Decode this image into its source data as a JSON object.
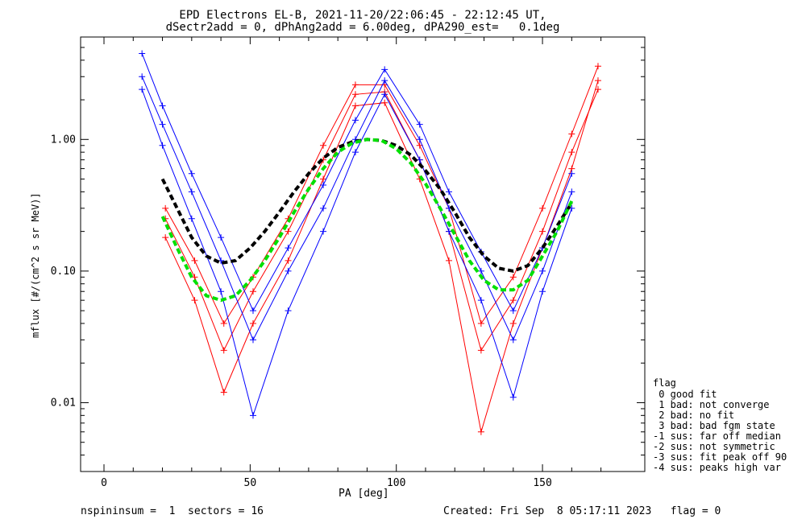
{
  "title_line1": "EPD Electrons EL-B, 2021-11-20/22:06:45 - 22:12:45 UT,",
  "title_line2": "dSectr2add = 0, dPhAng2add = 6.00deg, dPA290_est=   0.1deg",
  "footer_left": "nspininsum =  1  sectors = 16",
  "footer_right": "Created: Fri Sep  8 05:17:11 2023   flag = 0",
  "legend": {
    "title": "flag",
    "items": [
      " 0 good fit",
      " 1 bad: not converge",
      " 2 bad: no fit",
      " 3 bad: bad fgm state",
      "-1 sus: far off median",
      "-2 sus: not symmetric",
      "-3 sus: fit peak off 90",
      "-4 sus: peaks high var"
    ]
  },
  "colors": {
    "red": "#ff0000",
    "blue": "#0000ff",
    "black": "#000000",
    "green": "#00e000",
    "axis": "#000000"
  },
  "chart_data": {
    "type": "line",
    "xlabel": "PA [deg]",
    "ylabel": "mflux [#/(cm^2 s sr MeV)]",
    "xlim": [
      -8,
      185
    ],
    "ylim": [
      0.003,
      6
    ],
    "yscale": "log",
    "x_ticks": [
      0,
      50,
      100,
      150
    ],
    "x_tick_labels": [
      "0",
      "50",
      "100",
      "150"
    ],
    "y_ticks": [
      0.01,
      0.1,
      1.0
    ],
    "y_tick_labels": [
      "0.01",
      "0.10",
      "1.00"
    ],
    "series": [
      {
        "color": "red",
        "style": "line+cross",
        "x": [
          21,
          31,
          41,
          51,
          63,
          75,
          86,
          96,
          108,
          118,
          129,
          140,
          150,
          160,
          169
        ],
        "y": [
          0.25,
          0.09,
          0.025,
          0.07,
          0.2,
          0.7,
          2.2,
          2.3,
          0.7,
          0.2,
          0.025,
          0.06,
          0.2,
          0.8,
          2.4
        ]
      },
      {
        "color": "red",
        "style": "line+cross",
        "x": [
          21,
          31,
          41,
          51,
          63,
          75,
          86,
          96,
          108,
          118,
          129,
          140,
          150,
          160,
          169
        ],
        "y": [
          0.18,
          0.06,
          0.012,
          0.04,
          0.12,
          0.5,
          1.8,
          1.9,
          0.5,
          0.12,
          0.006,
          0.04,
          0.15,
          0.6,
          2.8
        ]
      },
      {
        "color": "red",
        "style": "line+cross",
        "x": [
          21,
          31,
          41,
          51,
          63,
          75,
          86,
          96,
          108,
          118,
          129,
          140,
          150,
          160,
          169
        ],
        "y": [
          0.3,
          0.12,
          0.04,
          0.09,
          0.25,
          0.9,
          2.6,
          2.6,
          0.9,
          0.3,
          0.04,
          0.09,
          0.3,
          1.1,
          3.6
        ]
      },
      {
        "color": "blue",
        "style": "line+cross",
        "x": [
          13,
          20,
          30,
          40,
          51,
          63,
          75,
          86,
          96,
          108,
          118,
          129,
          140,
          150,
          160
        ],
        "y": [
          3.0,
          1.3,
          0.4,
          0.12,
          0.03,
          0.1,
          0.3,
          1.0,
          2.8,
          1.0,
          0.3,
          0.1,
          0.03,
          0.1,
          0.4
        ]
      },
      {
        "color": "blue",
        "style": "line+cross",
        "x": [
          13,
          20,
          30,
          40,
          51,
          63,
          75,
          86,
          96,
          108,
          118,
          129,
          140,
          150,
          160
        ],
        "y": [
          2.4,
          0.9,
          0.25,
          0.07,
          0.008,
          0.05,
          0.2,
          0.8,
          2.2,
          0.7,
          0.2,
          0.06,
          0.011,
          0.07,
          0.3
        ]
      },
      {
        "color": "blue",
        "style": "line+cross",
        "x": [
          13,
          20,
          30,
          40,
          51,
          63,
          75,
          86,
          96,
          108,
          118,
          129,
          140,
          150,
          160
        ],
        "y": [
          4.5,
          1.8,
          0.55,
          0.18,
          0.05,
          0.15,
          0.45,
          1.4,
          3.4,
          1.3,
          0.4,
          0.14,
          0.05,
          0.15,
          0.55
        ]
      },
      {
        "color": "black",
        "style": "dashed",
        "x": [
          20,
          25,
          30,
          35,
          40,
          45,
          50,
          55,
          60,
          65,
          70,
          75,
          80,
          85,
          90,
          95,
          100,
          105,
          110,
          115,
          120,
          125,
          130,
          135,
          140,
          145,
          150,
          155,
          160
        ],
        "y": [
          0.5,
          0.3,
          0.18,
          0.13,
          0.115,
          0.12,
          0.15,
          0.2,
          0.28,
          0.4,
          0.55,
          0.72,
          0.87,
          0.96,
          1.0,
          0.98,
          0.9,
          0.76,
          0.58,
          0.42,
          0.28,
          0.18,
          0.13,
          0.105,
          0.1,
          0.11,
          0.15,
          0.22,
          0.33
        ]
      },
      {
        "color": "green",
        "style": "dashed",
        "x": [
          20,
          25,
          30,
          35,
          40,
          45,
          50,
          55,
          60,
          65,
          70,
          75,
          80,
          85,
          90,
          95,
          100,
          105,
          110,
          115,
          120,
          125,
          130,
          135,
          140,
          145,
          150,
          155,
          160
        ],
        "y": [
          0.26,
          0.15,
          0.09,
          0.065,
          0.06,
          0.065,
          0.085,
          0.12,
          0.18,
          0.28,
          0.42,
          0.6,
          0.8,
          0.94,
          1.0,
          0.98,
          0.85,
          0.66,
          0.46,
          0.3,
          0.19,
          0.12,
          0.085,
          0.072,
          0.072,
          0.085,
          0.13,
          0.2,
          0.34
        ]
      }
    ]
  }
}
